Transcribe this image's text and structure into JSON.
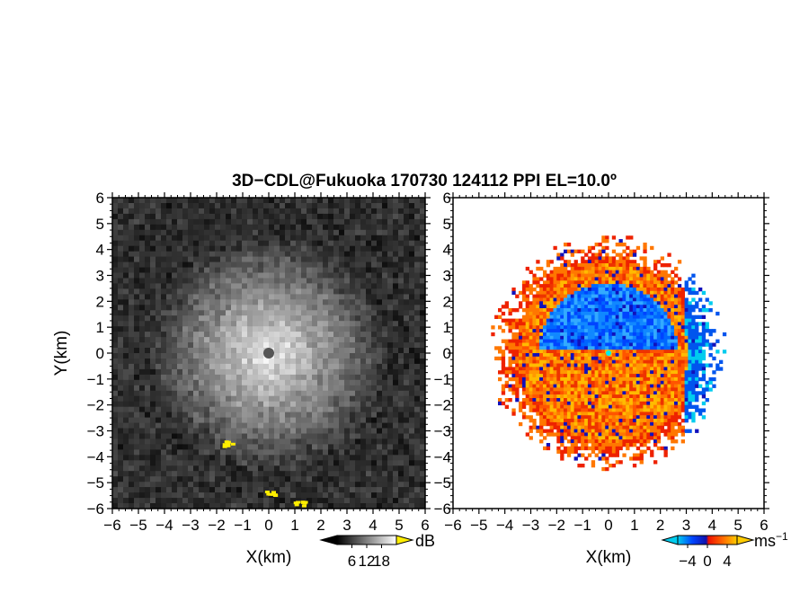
{
  "title": "3D−CDL@Fukuoka 170730 124112 PPI EL=10.0º",
  "chart_data": [
    {
      "type": "heatmap",
      "panel": "left",
      "quantity": "echo intensity",
      "xlabel": "X(km)",
      "ylabel": "Y(km)",
      "xlim": [
        -6,
        6
      ],
      "ylim": [
        -6,
        6
      ],
      "xticks": [
        "−6",
        "−5",
        "−4",
        "−3",
        "−2",
        "−1",
        "0",
        "1",
        "2",
        "3",
        "4",
        "5",
        "6"
      ],
      "yticks": [
        "6",
        "5",
        "4",
        "3",
        "2",
        "1",
        "0",
        "−1",
        "−2",
        "−3",
        "−4",
        "−5",
        "−6"
      ],
      "colorbar": {
        "unit": "dB",
        "ticks": [
          "6",
          "12",
          "18"
        ],
        "palette": "grayscale",
        "range": [
          0,
          24
        ]
      },
      "features": {
        "center_km": [
          0,
          0
        ],
        "bright_radius_km": 3.2,
        "highlighted_patches_km": [
          {
            "x": -1.5,
            "y": -3.5,
            "color": "#ffee00"
          },
          {
            "x": 0.1,
            "y": -5.4,
            "color": "#ffee00"
          },
          {
            "x": 1.2,
            "y": -5.8,
            "color": "#ffee00"
          }
        ]
      }
    },
    {
      "type": "heatmap",
      "panel": "right",
      "quantity": "Doppler velocity",
      "xlabel": "X(km)",
      "ylabel": "",
      "xlim": [
        -6,
        6
      ],
      "ylim": [
        -6,
        6
      ],
      "xticks": [
        "−6",
        "−5",
        "−4",
        "−3",
        "−2",
        "−1",
        "0",
        "1",
        "2",
        "3",
        "4",
        "5",
        "6"
      ],
      "yticks": [
        "6",
        "5",
        "4",
        "3",
        "2",
        "1",
        "0",
        "−1",
        "−2",
        "−3",
        "−4",
        "−5",
        "−6"
      ],
      "colorbar": {
        "unit": "ms",
        "unit_exponent": "−1",
        "ticks": [
          "−4",
          "0",
          "4"
        ],
        "range": [
          -6,
          6
        ],
        "colors": [
          "#00ccee",
          "#0044ff",
          "#1111aa",
          "#ee1100",
          "#ff6600",
          "#ffcc00"
        ]
      },
      "features": {
        "center_km": [
          0,
          0
        ],
        "radius_km": 3.6,
        "negative_sector": "north (blue, approaching)",
        "positive_sector": "south (orange/yellow, receding)"
      }
    }
  ]
}
